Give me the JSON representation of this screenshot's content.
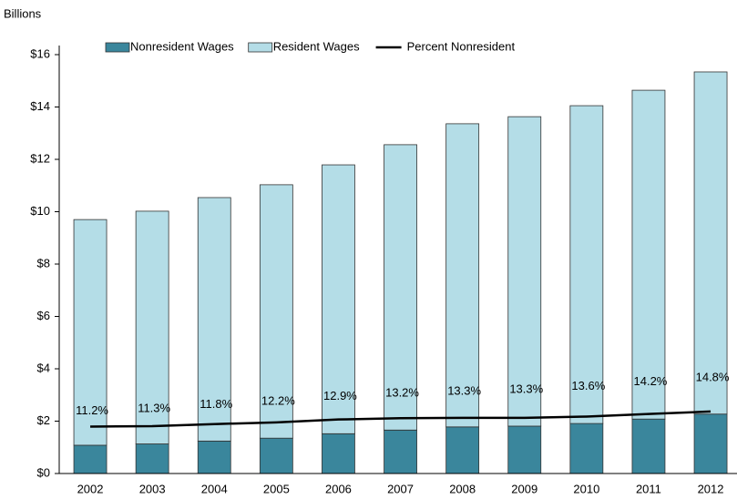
{
  "chart_data": {
    "type": "bar",
    "stacked": true,
    "ylabel": "Billions",
    "categories": [
      "2002",
      "2003",
      "2004",
      "2005",
      "2006",
      "2007",
      "2008",
      "2009",
      "2010",
      "2011",
      "2012"
    ],
    "series": [
      {
        "name": "Nonresident Wages",
        "color": "#3a869c",
        "values": [
          1.08,
          1.13,
          1.24,
          1.35,
          1.52,
          1.66,
          1.78,
          1.81,
          1.91,
          2.08,
          2.27
        ]
      },
      {
        "name": "Resident Wages",
        "color": "#b4dde7",
        "values": [
          8.62,
          8.89,
          9.3,
          9.68,
          10.27,
          10.9,
          11.58,
          11.82,
          12.14,
          12.56,
          13.07
        ]
      },
      {
        "name": "Percent Nonresident",
        "type": "line",
        "axis": "y2",
        "color": "#000000",
        "values": [
          11.2,
          11.3,
          11.8,
          12.2,
          12.9,
          13.2,
          13.3,
          13.3,
          13.6,
          14.2,
          14.8
        ],
        "value_labels": [
          "11.2%",
          "11.3%",
          "11.8%",
          "12.2%",
          "12.9%",
          "13.2%",
          "13.3%",
          "13.3%",
          "13.6%",
          "14.2%",
          "14.8%"
        ]
      }
    ],
    "ylim": [
      0,
      16
    ],
    "yticks": [
      {
        "value": 0,
        "label": "$0"
      },
      {
        "value": 2,
        "label": "$2"
      },
      {
        "value": 4,
        "label": "$4"
      },
      {
        "value": 6,
        "label": "$6"
      },
      {
        "value": 8,
        "label": "$8"
      },
      {
        "value": 10,
        "label": "$10"
      },
      {
        "value": 12,
        "label": "$12"
      },
      {
        "value": 14,
        "label": "$14"
      },
      {
        "value": 16,
        "label": "$16"
      }
    ],
    "y2lim": [
      0,
      100
    ],
    "legend": "top"
  }
}
